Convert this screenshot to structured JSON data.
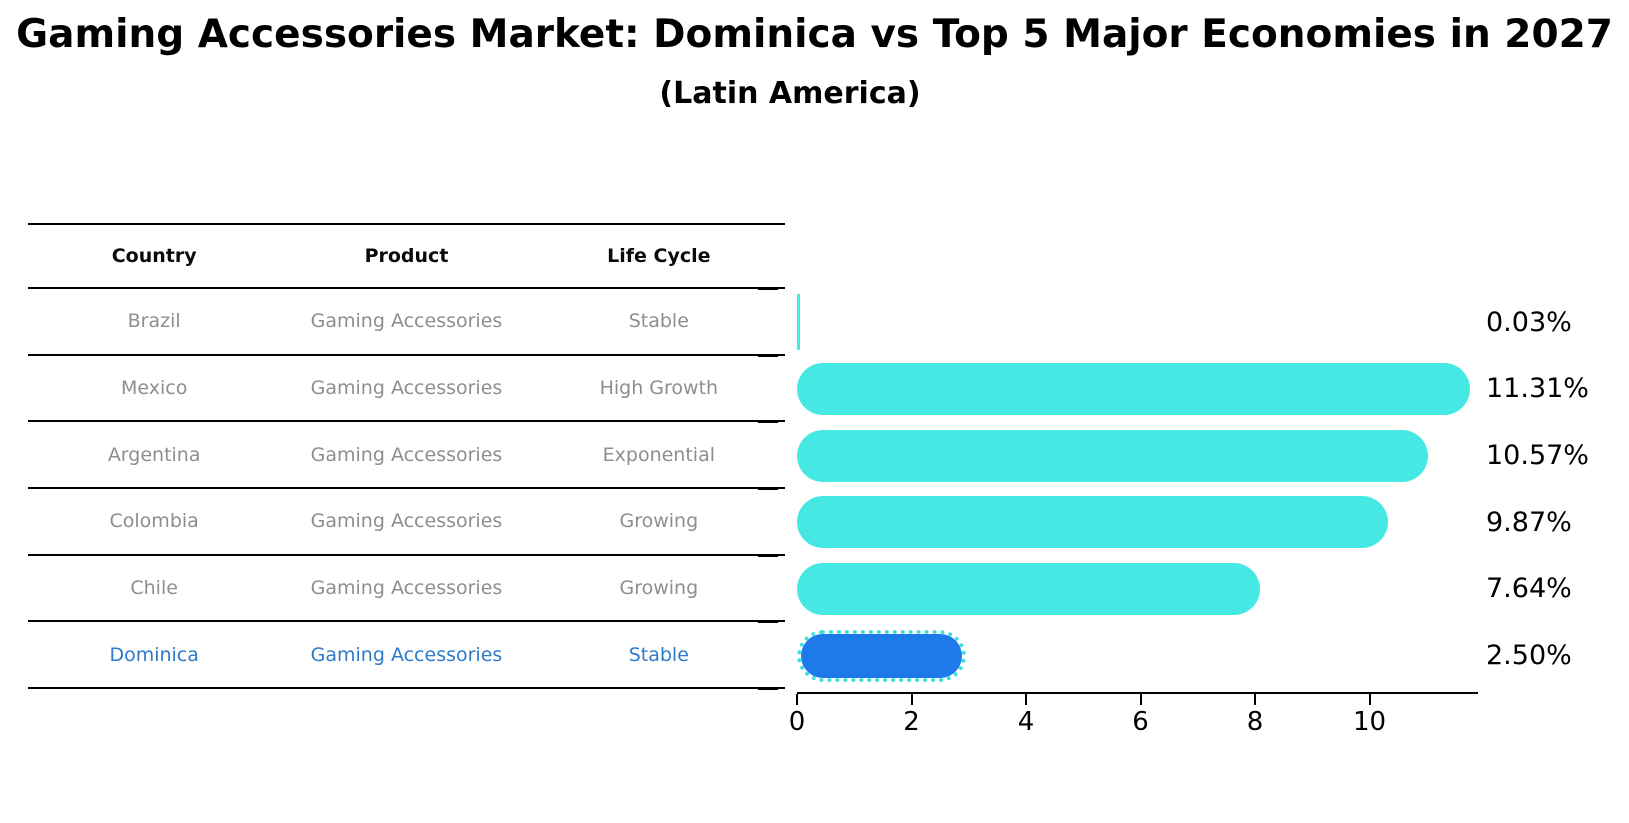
{
  "title": "Gaming Accessories Market: Dominica vs Top 5 Major Economies in 2027",
  "subtitle": "(Latin America)",
  "table": {
    "headers": [
      "Country",
      "Product",
      "Life Cycle"
    ],
    "rows": [
      {
        "country": "Brazil",
        "product": "Gaming Accessories",
        "life_cycle": "Stable"
      },
      {
        "country": "Mexico",
        "product": "Gaming Accessories",
        "life_cycle": "High Growth"
      },
      {
        "country": "Argentina",
        "product": "Gaming Accessories",
        "life_cycle": "Exponential"
      },
      {
        "country": "Colombia",
        "product": "Gaming Accessories",
        "life_cycle": "Growing"
      },
      {
        "country": "Chile",
        "product": "Gaming Accessories",
        "life_cycle": "Growing"
      },
      {
        "country": "Dominica",
        "product": "Gaming Accessories",
        "life_cycle": "Stable"
      }
    ]
  },
  "chart_data": {
    "type": "bar",
    "orientation": "horizontal",
    "categories": [
      "Brazil",
      "Mexico",
      "Argentina",
      "Colombia",
      "Chile",
      "Dominica"
    ],
    "values": [
      0.03,
      11.31,
      10.57,
      9.87,
      7.64,
      2.5
    ],
    "bar_labels": [
      "0.03%",
      "11.31%",
      "10.57%",
      "9.87%",
      "7.64%",
      "2.50%"
    ],
    "xticks": [
      "0",
      "2",
      "4",
      "6",
      "8",
      "10"
    ],
    "xtick_values": [
      0,
      2,
      4,
      6,
      8,
      10
    ],
    "xlim": [
      0,
      11.9
    ],
    "grid": false,
    "legend_position": "none",
    "bar_color": "#46e8e4",
    "highlight_color": "#1e7ae8",
    "highlight_edge_color": "#3fe0dc",
    "highlight_edge_style": "dotted",
    "highlight_index": 5,
    "title": "Gaming Accessories Market: Dominica vs Top 5 Major Economies in 2027",
    "subtitle": "(Latin America)",
    "xlabel": "",
    "ylabel": ""
  }
}
